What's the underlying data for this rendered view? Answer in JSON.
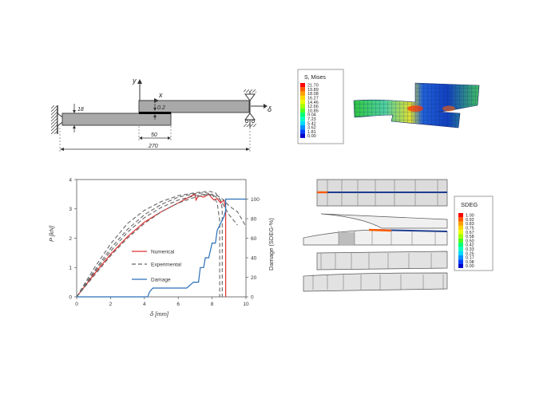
{
  "specimen": {
    "y_axis": "y",
    "x_axis": "x",
    "thickness_label": "18",
    "adhesive_label": "0.2",
    "overlap_label": "50",
    "length_label": "270",
    "displacement_label": "δ"
  },
  "mises_legend": {
    "title": "S, Mises",
    "values": [
      "21.70",
      "19.89",
      "18.08",
      "16.27",
      "14.46",
      "12.66",
      "10.85",
      "9.04",
      "7.23",
      "5.42",
      "3.62",
      "1.81",
      "0.00"
    ],
    "colors": [
      "#ff0000",
      "#ff5a00",
      "#ffa000",
      "#ffd700",
      "#e6ff00",
      "#a0ff00",
      "#50ff20",
      "#00ff70",
      "#00ffc0",
      "#00d8ff",
      "#0090ff",
      "#0040ff",
      "#0000c8"
    ]
  },
  "sdeg_legend": {
    "title": "SDEG",
    "values": [
      "1.00",
      "0.92",
      "0.83",
      "0.75",
      "0.67",
      "0.58",
      "0.50",
      "0.42",
      "0.33",
      "0.25",
      "0.17",
      "0.08",
      "0.00"
    ],
    "colors": [
      "#ff0000",
      "#ff5a00",
      "#ffa000",
      "#ffd700",
      "#e6ff00",
      "#a0ff00",
      "#50ff20",
      "#00ff70",
      "#00ffc0",
      "#00d8ff",
      "#0090ff",
      "#0040ff",
      "#0000c8"
    ]
  },
  "chart_data": {
    "type": "line",
    "xlabel": "δ [mm]",
    "ylabel": "P [kN]",
    "y2label": "Damage (SDEG-%)",
    "xlim": [
      0,
      10
    ],
    "ylim": [
      0,
      4
    ],
    "y2lim": [
      0,
      120
    ],
    "x_ticks": [
      "0",
      "2",
      "4",
      "6",
      "8",
      "10"
    ],
    "y_ticks": [
      "0",
      "1",
      "2",
      "3",
      "4"
    ],
    "y2_ticks": [
      "0",
      "20",
      "40",
      "60",
      "80",
      "100"
    ],
    "legend": [
      {
        "name": "Numerical",
        "color": "#e03030",
        "dash": ""
      },
      {
        "name": "Experimental",
        "color": "#666666",
        "dash": "5,3"
      },
      {
        "name": "Damage",
        "color": "#2a6fb8",
        "dash": ""
      }
    ],
    "series": [
      {
        "name": "Numerical",
        "axis": "y",
        "color": "#e03030",
        "dash": "",
        "x": [
          0,
          1,
          2,
          3,
          4,
          5,
          6,
          6.8,
          7.0,
          7.05,
          7.2,
          7.5,
          7.8,
          8.1,
          8.3,
          8.5,
          8.7,
          8.8,
          8.8
        ],
        "y": [
          0,
          0.75,
          1.45,
          2.05,
          2.55,
          2.9,
          3.2,
          3.45,
          3.5,
          3.3,
          3.45,
          3.4,
          3.5,
          3.3,
          3.35,
          3.2,
          3.3,
          3.0,
          0
        ]
      },
      {
        "name": "Experimental 1",
        "axis": "y",
        "color": "#666666",
        "dash": "5,3",
        "x": [
          0,
          1,
          2,
          3,
          4,
          5,
          6,
          7,
          7.6,
          8.0,
          8.3,
          8.45,
          8.45
        ],
        "y": [
          0,
          0.85,
          1.65,
          2.3,
          2.8,
          3.15,
          3.4,
          3.52,
          3.55,
          3.5,
          3.2,
          2.6,
          0
        ]
      },
      {
        "name": "Experimental 2",
        "axis": "y",
        "color": "#666666",
        "dash": "5,3",
        "x": [
          0,
          1,
          2,
          3,
          4,
          5,
          6,
          7,
          7.8,
          8.2,
          8.6,
          9.0,
          9.5
        ],
        "y": [
          0,
          0.95,
          1.8,
          2.5,
          2.95,
          3.25,
          3.45,
          3.55,
          3.6,
          3.55,
          3.2,
          2.8,
          2.45
        ]
      },
      {
        "name": "Experimental 3",
        "axis": "y",
        "color": "#666666",
        "dash": "5,3",
        "x": [
          0,
          1,
          2,
          3,
          4,
          5,
          6,
          7,
          7.8,
          8.3,
          8.7,
          9.0,
          9.5,
          10
        ],
        "y": [
          0,
          0.7,
          1.4,
          2.0,
          2.5,
          2.9,
          3.2,
          3.4,
          3.5,
          3.45,
          3.3,
          3.1,
          2.9,
          2.4
        ]
      },
      {
        "name": "Experimental 4",
        "axis": "y",
        "color": "#666666",
        "dash": "5,3",
        "x": [
          0,
          1,
          2,
          3,
          4,
          5,
          6,
          7,
          7.6,
          8.1,
          8.5,
          8.6,
          8.6
        ],
        "y": [
          0,
          0.8,
          1.55,
          2.2,
          2.7,
          3.05,
          3.3,
          3.45,
          3.5,
          3.45,
          3.3,
          3.0,
          0
        ]
      },
      {
        "name": "Damage",
        "axis": "y2",
        "color": "#2a6fb8",
        "dash": "",
        "x": [
          0,
          4.2,
          4.3,
          4.5,
          6.5,
          6.9,
          7.2,
          7.3,
          7.5,
          7.6,
          7.8,
          8.0,
          8.2,
          8.3,
          8.5,
          8.7,
          8.8,
          8.8,
          10
        ],
        "y": [
          0,
          0,
          5,
          9,
          9,
          15,
          15,
          30,
          30,
          40,
          40,
          55,
          55,
          68,
          75,
          82,
          88,
          100,
          100
        ]
      }
    ]
  }
}
